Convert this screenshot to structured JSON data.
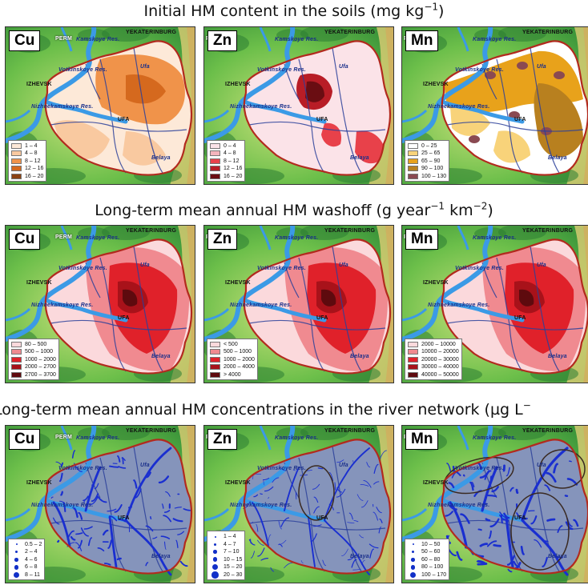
{
  "rows": [
    {
      "title_main": "Initial HM content in the soils (mg kg",
      "title_sup": "−1",
      "title_end": ")",
      "type": "soil",
      "panels": [
        {
          "metal": "Cu",
          "legend": [
            "1 – 4",
            "4 – 8",
            "8 – 12",
            "12 – 16",
            "16 – 20"
          ],
          "colors": [
            "#fde9d8",
            "#f9c9a0",
            "#f0934a",
            "#d5691e",
            "#8a4213"
          ]
        },
        {
          "metal": "Zn",
          "legend": [
            "0 – 4",
            "4 – 8",
            "8 – 12",
            "12 – 16",
            "16 – 20"
          ],
          "colors": [
            "#fbe3e8",
            "#f4b5bd",
            "#e8414a",
            "#b81d26",
            "#6a0d12"
          ]
        },
        {
          "metal": "Mn",
          "legend": [
            "0 – 25",
            "25 – 65",
            "65 – 90",
            "90 – 100",
            "100 – 130"
          ],
          "colors": [
            "#ffffff",
            "#f8d37a",
            "#e8a21b",
            "#b8801f",
            "#8a4a52"
          ]
        }
      ]
    },
    {
      "title_main": "Long-term mean annual HM washoff (g year",
      "title_sup": "−1",
      "title_mid": " km",
      "title_sup2": "−2",
      "title_end": ")",
      "type": "washoff",
      "panels": [
        {
          "metal": "Cu",
          "legend": [
            "80 – 500",
            "500 – 1000",
            "1000 – 2000",
            "2000 – 2700",
            "2700 – 3700"
          ],
          "colors": [
            "#fbd9dc",
            "#f08a90",
            "#e0212a",
            "#a8121a",
            "#5e0a0e"
          ]
        },
        {
          "metal": "Zn",
          "legend": [
            "< 500",
            "500 – 1000",
            "1000 – 2000",
            "2000 – 4000",
            "> 4000"
          ],
          "colors": [
            "#fbd9dc",
            "#f08a90",
            "#e0212a",
            "#a8121a",
            "#5e0a0e"
          ]
        },
        {
          "metal": "Mn",
          "legend": [
            "2000 – 10000",
            "10000 – 20000",
            "20000 – 30000",
            "30000 – 40000",
            "40000 – 50000"
          ],
          "colors": [
            "#fbd9dc",
            "#f08a90",
            "#e0212a",
            "#a8121a",
            "#5e0a0e"
          ]
        }
      ]
    },
    {
      "title_main": "Long-term mean annual HM concentrations in the river network (µg L",
      "title_sup": "−",
      "title_end": "",
      "type": "river",
      "panels": [
        {
          "metal": "Cu",
          "legend": [
            "0.5 – 2",
            "2 – 4",
            "4 – 6",
            "6 – 8",
            "8 – 11"
          ],
          "colors": [
            "#1230c8",
            "#1230c8",
            "#1230c8",
            "#1230c8",
            "#1230c8"
          ]
        },
        {
          "metal": "Zn",
          "legend": [
            "1 – 4",
            "4 – 7",
            "7 – 10",
            "10 – 15",
            "15 – 20",
            "20 – 30"
          ],
          "colors": [
            "#1230c8",
            "#1230c8",
            "#1230c8",
            "#1230c8",
            "#1230c8",
            "#1230c8"
          ]
        },
        {
          "metal": "Mn",
          "legend": [
            "10 – 50",
            "50 – 60",
            "60 – 80",
            "80 – 100",
            "100 – 170"
          ],
          "colors": [
            "#1230c8",
            "#1230c8",
            "#1230c8",
            "#1230c8",
            "#1230c8"
          ]
        }
      ]
    }
  ],
  "places": {
    "yekaterinburg": "YEKATERINBURG",
    "kamskoye": "Kamskoye Res.",
    "votkinskoye": "Votkinskoye Res.",
    "izhevsk": "IZHEVSK",
    "nizhnekamskoye": "Nizhnekamskoye Res.",
    "ufa": "UFA",
    "ufa_river": "Ufa",
    "belaya": "Belaya",
    "perm": "PERM"
  }
}
